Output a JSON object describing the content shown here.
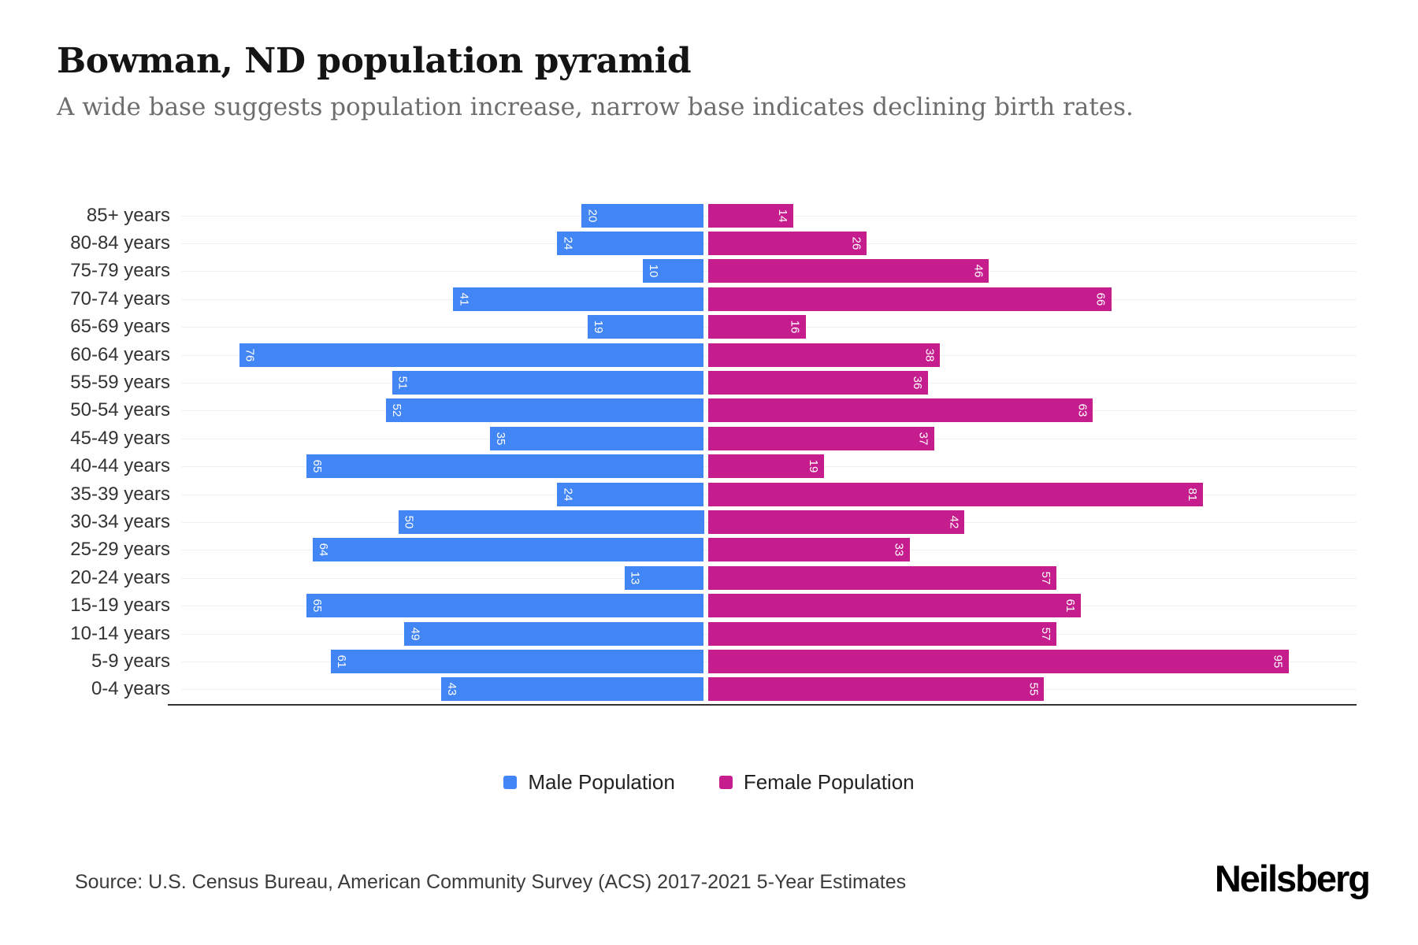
{
  "header": {
    "title": "Bowman, ND population pyramid",
    "subtitle": "A wide base suggests population increase, narrow base indicates declining birth rates."
  },
  "chart_data": {
    "type": "bar",
    "variant": "population-pyramid",
    "title": "Bowman, ND population pyramid",
    "categories": [
      "85+ years",
      "80-84 years",
      "75-79 years",
      "70-74 years",
      "65-69 years",
      "60-64 years",
      "55-59 years",
      "50-54 years",
      "45-49 years",
      "40-44 years",
      "35-39 years",
      "30-34 years",
      "25-29 years",
      "20-24 years",
      "15-19 years",
      "10-14 years",
      "5-9 years",
      "0-4 years"
    ],
    "series": [
      {
        "name": "Male Population",
        "side": "left",
        "color": "#4285F4",
        "values": [
          20,
          24,
          10,
          41,
          19,
          76,
          51,
          52,
          35,
          65,
          24,
          50,
          64,
          13,
          65,
          49,
          61,
          43
        ]
      },
      {
        "name": "Female Population",
        "side": "right",
        "color": "#C61D8E",
        "values": [
          14,
          26,
          46,
          66,
          16,
          38,
          36,
          63,
          37,
          19,
          81,
          42,
          33,
          57,
          61,
          57,
          95,
          55
        ]
      }
    ],
    "value_labels_shown": true,
    "value_label_rotation_deg": 90,
    "grid": true,
    "axis_max": 95,
    "legend_position": "bottom"
  },
  "legend": {
    "items": [
      {
        "label": "Male Population",
        "color": "#4285F4"
      },
      {
        "label": "Female Population",
        "color": "#C61D8E"
      }
    ]
  },
  "footer": {
    "source": "Source: U.S. Census Bureau, American Community Survey (ACS) 2017-2021 5-Year Estimates",
    "brand": "Neilsberg"
  }
}
